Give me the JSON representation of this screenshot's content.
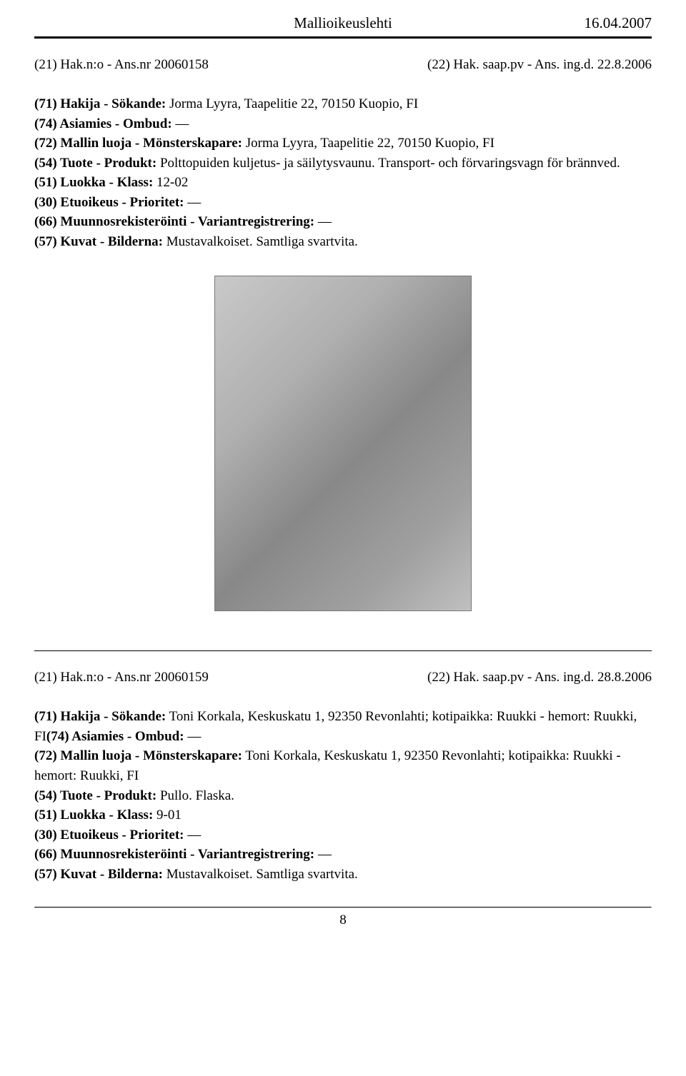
{
  "header": {
    "title": "Mallioikeuslehti",
    "date": "16.04.2007"
  },
  "entry1": {
    "appNoLabel": "(21) Hak.n:o - Ans.nr",
    "appNo": "20060158",
    "filedLabel": "(22) Hak. saap.pv - Ans. ing.d.",
    "filedDate": "22.8.2006",
    "l71": "(71) Hakija - Sökande:",
    "v71": " Jorma Lyyra, Taapelitie 22, 70150 Kuopio, FI",
    "l74": "(74) Asiamies - Ombud:",
    "v74": " —",
    "l72": "(72) Mallin luoja - Mönsterskapare:",
    "v72": " Jorma Lyyra, Taapelitie 22, 70150 Kuopio, FI",
    "l54": "(54) Tuote - Produkt:",
    "v54": " Polttopuiden kuljetus- ja säilytysvaunu. Transport- och förvaringsvagn för brännved.",
    "l51": "(51) Luokka - Klass:",
    "v51": " 12-02",
    "l30": "(30) Etuoikeus - Prioritet:",
    "v30": " —",
    "l66": "(66) Muunnosrekisteröinti - Variantregistrering:",
    "v66": " —",
    "l57": "(57) Kuvat - Bilderna:",
    "v57": " Mustavalkoiset. Samtliga svartvita."
  },
  "entry2": {
    "appNoLabel": "(21) Hak.n:o - Ans.nr",
    "appNo": "20060159",
    "filedLabel": "(22) Hak. saap.pv - Ans. ing.d.",
    "filedDate": "28.8.2006",
    "l71": "(71) Hakija - Sökande:",
    "v71": " Toni Korkala, Keskuskatu 1, 92350 Revonlahti; kotipaikka: Ruukki - hemort: Ruukki, FI",
    "l74": "(74) Asiamies - Ombud:",
    "v74": " —",
    "l72": "(72) Mallin luoja - Mönsterskapare:",
    "v72": " Toni Korkala, Keskuskatu 1, 92350 Revonlahti; kotipaikka: Ruukki - hemort: Ruukki, FI",
    "l54": "(54) Tuote - Produkt:",
    "v54": " Pullo. Flaska.",
    "l51": "(51) Luokka - Klass:",
    "v51": " 9-01",
    "l30": "(30) Etuoikeus - Prioritet:",
    "v30": " —",
    "l66": "(66) Muunnosrekisteröinti - Variantregistrering:",
    "v66": " —",
    "l57": "(57) Kuvat - Bilderna:",
    "v57": " Mustavalkoiset. Samtliga svartvita."
  },
  "pageNumber": "8"
}
